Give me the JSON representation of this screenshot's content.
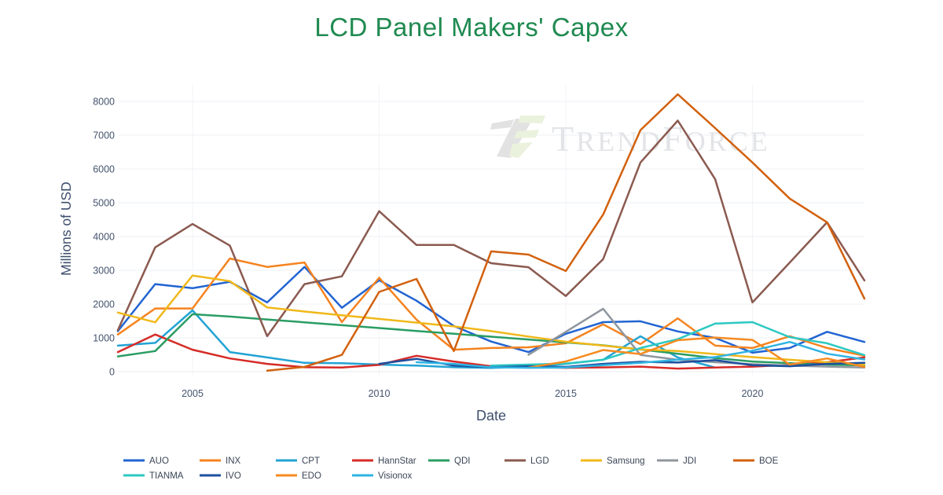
{
  "page_title": "LCD Panel Makers' Capex",
  "watermark": {
    "name": "TrendForce",
    "t1": "T",
    "t2": "REND",
    "t3": "F",
    "t4": "ORCE"
  },
  "style": {
    "title_color": "#1f8a50",
    "axis_title_color": "#3f4f6e",
    "tick_color": "#44536e",
    "legend_text_color": "#3a4556",
    "grid_color": "#eef0f4",
    "background": "#ffffff"
  },
  "chart_data": {
    "type": "line",
    "title": "LCD Panel Makers' Capex",
    "xlabel": "Date",
    "ylabel": "Millions of USD",
    "x_ticks": [
      2005,
      2010,
      2015,
      2020
    ],
    "y_ticks": [
      0,
      1000,
      2000,
      3000,
      4000,
      5000,
      6000,
      7000,
      8000
    ],
    "xlim": [
      2003,
      2023
    ],
    "ylim": [
      0,
      8480
    ],
    "grid": true,
    "legend_position": "bottom",
    "years": [
      2003,
      2004,
      2005,
      2006,
      2007,
      2008,
      2009,
      2010,
      2011,
      2012,
      2013,
      2014,
      2015,
      2016,
      2017,
      2018,
      2019,
      2020,
      2021,
      2022,
      2023
    ],
    "series": [
      {
        "name": "AUO",
        "color": "#2164d2",
        "values": [
          1200,
          2590,
          2470,
          2660,
          2050,
          3100,
          1890,
          2705,
          2100,
          1350,
          890,
          580,
          1120,
          1465,
          1490,
          1190,
          1000,
          560,
          700,
          1180,
          880
        ]
      },
      {
        "name": "INX",
        "color": "#f5831f",
        "values": [
          1100,
          1870,
          1870,
          3350,
          3100,
          3230,
          1465,
          2780,
          1540,
          650,
          700,
          720,
          840,
          1400,
          815,
          1580,
          770,
          700,
          1050,
          700,
          470
        ]
      },
      {
        "name": "CPT",
        "color": "#22a3d4",
        "values": [
          770,
          850,
          1815,
          580,
          420,
          260,
          250,
          210,
          180,
          130,
          110,
          150,
          230,
          350,
          1050,
          420,
          120,
          null,
          null,
          null,
          null
        ]
      },
      {
        "name": "HannStar",
        "color": "#d62b27",
        "values": [
          580,
          1100,
          650,
          390,
          230,
          130,
          120,
          200,
          470,
          300,
          160,
          140,
          115,
          125,
          150,
          90,
          120,
          150,
          200,
          280,
          420
        ]
      },
      {
        "name": "QDI",
        "color": "#2a9d63",
        "values": [
          450,
          610,
          1700,
          1630,
          1545,
          1460,
          1375,
          1290,
          1205,
          1120,
          1035,
          950,
          865,
          780,
          655,
          530,
          400,
          300,
          250,
          210,
          185
        ]
      },
      {
        "name": "LGD",
        "color": "#8b5a50",
        "values": [
          1230,
          3680,
          4370,
          3730,
          1050,
          2590,
          2820,
          4750,
          3750,
          3750,
          3210,
          3090,
          2240,
          3330,
          6190,
          7430,
          5700,
          2050,
          3230,
          4420,
          2700
        ]
      },
      {
        "name": "Samsung",
        "color": "#f0b81a",
        "values": [
          1750,
          1460,
          2845,
          2680,
          1900,
          1780,
          1670,
          1560,
          1450,
          1340,
          1200,
          1040,
          885,
          770,
          655,
          610,
          520,
          430,
          350,
          280,
          210
        ]
      },
      {
        "name": "JDI",
        "color": "#8f969e",
        "values": [
          null,
          null,
          null,
          null,
          null,
          null,
          null,
          null,
          null,
          null,
          null,
          500,
          1180,
          1860,
          495,
          350,
          280,
          220,
          180,
          150,
          120
        ]
      },
      {
        "name": "BOE",
        "color": "#d2610e",
        "values": [
          null,
          null,
          null,
          null,
          30,
          140,
          495,
          2360,
          2745,
          610,
          3560,
          3465,
          2980,
          4650,
          7150,
          8210,
          7210,
          6190,
          5120,
          4420,
          2160
        ]
      },
      {
        "name": "TIANMA",
        "color": "#2cc8c2",
        "values": [
          null,
          null,
          null,
          null,
          null,
          null,
          null,
          null,
          null,
          null,
          180,
          210,
          240,
          350,
          700,
          960,
          1420,
          1465,
          1020,
          840,
          490
        ]
      },
      {
        "name": "IVO",
        "color": "#1d4f9e",
        "values": [
          null,
          null,
          null,
          null,
          null,
          null,
          null,
          230,
          380,
          180,
          130,
          160,
          140,
          230,
          290,
          270,
          340,
          190,
          160,
          230,
          260
        ]
      },
      {
        "name": "EDO",
        "color": "#f68b21",
        "values": [
          null,
          null,
          null,
          null,
          null,
          null,
          null,
          null,
          null,
          null,
          null,
          120,
          300,
          640,
          520,
          930,
          1010,
          940,
          210,
          390,
          140
        ]
      },
      {
        "name": "Visionox",
        "color": "#2fb3e2",
        "values": [
          null,
          null,
          null,
          null,
          null,
          null,
          null,
          null,
          280,
          230,
          130,
          115,
          120,
          190,
          260,
          350,
          430,
          620,
          880,
          530,
          360
        ]
      }
    ],
    "legend_rows": [
      [
        "AUO",
        "INX",
        "CPT",
        "HannStar",
        "QDI",
        "LGD",
        "Samsung",
        "JDI",
        "BOE"
      ],
      [
        "TIANMA",
        "IVO",
        "EDO",
        "Visionox"
      ]
    ]
  }
}
